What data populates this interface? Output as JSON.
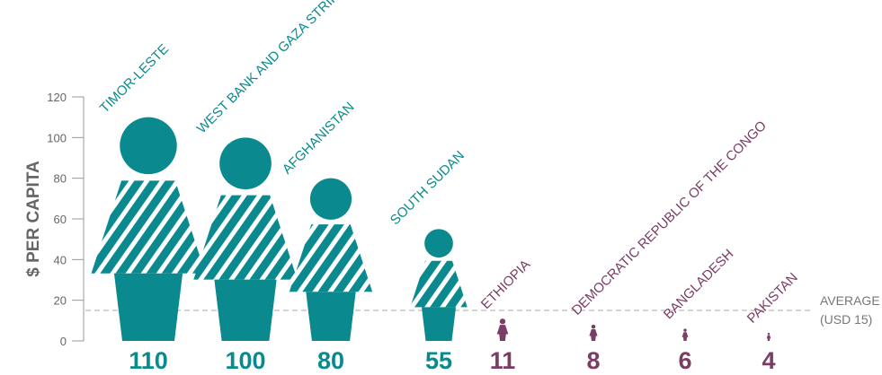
{
  "chart_data": {
    "type": "bar",
    "title": "",
    "ylabel": "$ PER CAPITA",
    "xlabel": "",
    "ylim": [
      0,
      120
    ],
    "yticks": [
      0,
      20,
      40,
      60,
      80,
      100,
      120
    ],
    "grid": false,
    "categories": [
      "TIMOR-LESTE",
      "WEST BANK AND GAZA STRIP",
      "AFGHANISTAN",
      "SOUTH SUDAN",
      "ETHIOPIA",
      "DEMOCRATIC REPUBLIC OF THE CONGO",
      "BANGLADESH",
      "PAKISTAN"
    ],
    "values": [
      110,
      100,
      80,
      55,
      11,
      8,
      6,
      4
    ],
    "value_labels": [
      "110",
      "100",
      "80",
      "55",
      "11",
      "8",
      "6",
      "4"
    ],
    "average": {
      "value": 15,
      "label_line1": "AVERAGE",
      "label_line2": "(USD 15)"
    },
    "colors": {
      "above_average": "#0a8a8e",
      "below_average": "#7a3d63",
      "axis": "#999999",
      "average_line": "#bbbbbb"
    }
  }
}
